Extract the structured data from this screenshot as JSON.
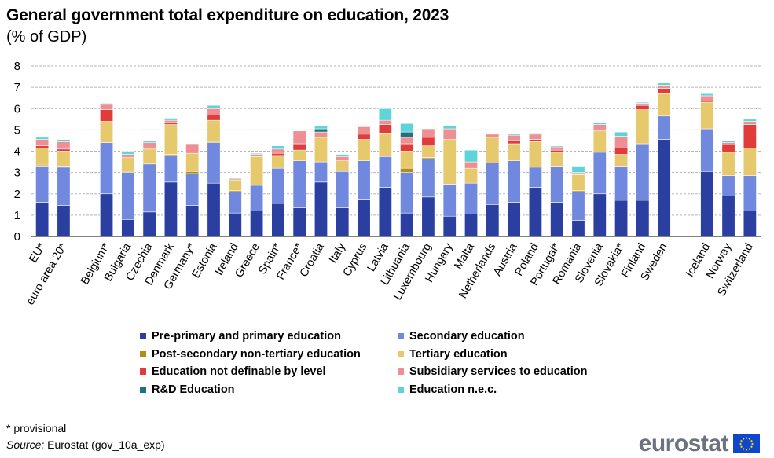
{
  "title": "General government total expenditure on education, 2023",
  "subtitle": "(% of GDP)",
  "footnote": "* provisional",
  "source_label": "Source:",
  "source_text": "Eurostat (gov_10a_exp)",
  "logo_text": "eurostat",
  "chart_data": {
    "type": "bar",
    "stacked": true,
    "ylim": [
      0,
      8
    ],
    "yticks": [
      0,
      1,
      2,
      3,
      4,
      5,
      6,
      7,
      8
    ],
    "grid": true,
    "legend_position": "bottom",
    "categories": [
      "EU*",
      "euro area 20*",
      "",
      "Belgium*",
      "Bulgaria",
      "Czechia",
      "Denmark",
      "Germany*",
      "Estonia",
      "Ireland",
      "Greece",
      "Spain*",
      "France*",
      "Croatia",
      "Italy",
      "Cyprus",
      "Latvia",
      "Lithuania",
      "Luxembourg",
      "Hungary",
      "Malta",
      "Netherlands",
      "Austria",
      "Poland",
      "Portugal*",
      "Romania",
      "Slovenia",
      "Slovakia*",
      "Finland",
      "Sweden",
      "",
      "Iceland",
      "Norway",
      "Switzerland"
    ],
    "series": [
      {
        "name": "Pre-primary and primary education",
        "color": "#2a3fa0",
        "values": [
          1.6,
          1.45,
          null,
          2.0,
          0.8,
          1.15,
          2.55,
          1.45,
          2.5,
          1.1,
          1.2,
          1.55,
          1.35,
          2.55,
          1.35,
          1.75,
          2.3,
          1.1,
          1.85,
          0.95,
          1.05,
          1.5,
          1.6,
          2.3,
          1.6,
          0.75,
          2.0,
          1.7,
          1.7,
          4.55,
          null,
          3.05,
          1.9,
          1.2
        ]
      },
      {
        "name": "Secondary education",
        "color": "#7088dd",
        "values": [
          1.7,
          1.8,
          null,
          2.4,
          2.2,
          2.25,
          1.25,
          1.5,
          1.9,
          1.0,
          1.2,
          1.65,
          2.2,
          0.95,
          1.7,
          1.8,
          1.45,
          1.9,
          1.8,
          1.5,
          1.45,
          1.95,
          1.95,
          0.95,
          1.7,
          1.35,
          1.95,
          1.6,
          2.65,
          1.1,
          null,
          2.0,
          0.95,
          1.65
        ]
      },
      {
        "name": "Post-secondary non-tertiary education",
        "color": "#b08c1a",
        "values": [
          0.05,
          0.05,
          null,
          0.0,
          0.05,
          0.0,
          0.05,
          0.1,
          0.05,
          0.05,
          0.0,
          0.0,
          0.0,
          0.0,
          0.0,
          0.0,
          0.0,
          0.2,
          0.05,
          0.0,
          0.0,
          0.0,
          0.0,
          0.0,
          0.0,
          0.05,
          0.0,
          0.0,
          0.0,
          0.0,
          null,
          0.0,
          0.0,
          0.0
        ]
      },
      {
        "name": "Tertiary education",
        "color": "#e6c96c",
        "values": [
          0.8,
          0.7,
          null,
          1.0,
          0.65,
          0.7,
          1.4,
          0.85,
          1.0,
          0.5,
          1.35,
          0.6,
          0.5,
          1.15,
          0.5,
          1.0,
          1.1,
          0.8,
          0.55,
          2.1,
          0.7,
          1.2,
          0.8,
          1.2,
          0.65,
          0.75,
          1.0,
          0.55,
          1.6,
          1.05,
          null,
          1.25,
          1.1,
          1.3
        ]
      },
      {
        "name": "Education not definable by level",
        "color": "#e03c3c",
        "values": [
          0.1,
          0.1,
          null,
          0.55,
          0.0,
          0.0,
          0.1,
          0.0,
          0.25,
          0.0,
          0.0,
          0.1,
          0.3,
          0.0,
          0.0,
          0.25,
          0.4,
          0.35,
          0.4,
          0.0,
          0.0,
          0.0,
          0.15,
          0.1,
          0.1,
          0.05,
          0.0,
          0.3,
          0.2,
          0.25,
          null,
          0.05,
          0.35,
          1.1
        ]
      },
      {
        "name": "Subsidiary services to education",
        "color": "#ee9093",
        "values": [
          0.3,
          0.35,
          null,
          0.25,
          0.15,
          0.3,
          0.1,
          0.45,
          0.3,
          0.05,
          0.1,
          0.2,
          0.6,
          0.25,
          0.2,
          0.35,
          0.2,
          0.3,
          0.4,
          0.5,
          0.3,
          0.15,
          0.25,
          0.25,
          0.15,
          0.05,
          0.3,
          0.55,
          0.1,
          0.15,
          null,
          0.25,
          0.1,
          0.15
        ]
      },
      {
        "name": "R&D Education",
        "color": "#1a7580",
        "values": [
          0.0,
          0.0,
          null,
          0.0,
          0.0,
          0.0,
          0.0,
          0.0,
          0.0,
          0.0,
          0.0,
          0.0,
          0.0,
          0.15,
          0.0,
          0.0,
          0.0,
          0.25,
          0.0,
          0.0,
          0.0,
          0.0,
          0.0,
          0.0,
          0.0,
          0.0,
          0.0,
          0.0,
          0.0,
          0.0,
          null,
          0.0,
          0.0,
          0.0
        ]
      },
      {
        "name": "Education n.e.c.",
        "color": "#5ed3d8",
        "values": [
          0.1,
          0.1,
          null,
          0.05,
          0.15,
          0.1,
          0.1,
          0.0,
          0.15,
          0.05,
          0.05,
          0.15,
          0.0,
          0.15,
          0.1,
          0.05,
          0.55,
          0.4,
          0.0,
          0.15,
          0.55,
          0.0,
          0.05,
          0.05,
          0.05,
          0.3,
          0.1,
          0.2,
          0.05,
          0.1,
          null,
          0.1,
          0.1,
          0.1
        ]
      }
    ]
  }
}
